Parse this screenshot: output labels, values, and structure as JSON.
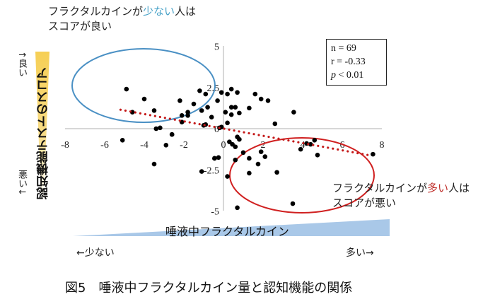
{
  "annotations": {
    "top_left": {
      "line1_pre": "フラクタルカインが",
      "line1_em": "少ない",
      "line1_post": "人は",
      "line2": "スコアが良い",
      "em_color": "#4aa3c8"
    },
    "bottom_right": {
      "line1_pre": "フラクタルカインが",
      "line1_em": "多い",
      "line1_post": "人は",
      "line2": "スコアが悪い",
      "em_color": "#c0302c"
    }
  },
  "stats": {
    "n": "n = 69",
    "r": "r = -0.33",
    "p_symbol": "p",
    "p_rest": " < 0.01"
  },
  "y_axis": {
    "title": "認知機能テストのスコア",
    "good": "↑良い",
    "bad": "悪い↓"
  },
  "x_axis": {
    "band_label": "唾液中フラクタルカイン",
    "low": "←少ない",
    "high": "多い→"
  },
  "caption": "図5　唾液中フラクタルカイン量と認知機能の関係",
  "colors": {
    "good_ellipse": "#4a90c4",
    "bad_ellipse": "#d02020",
    "trendline": "#c41818",
    "band": "#a9c8e8",
    "ybar": "#f7d36a"
  },
  "chart_data": {
    "type": "scatter",
    "title": "図5 唾液中フラクタルカイン量と認知機能の関係",
    "xlabel": "唾液中フラクタルカイン",
    "ylabel": "認知機能テストのスコア",
    "xlim": [
      -8,
      8
    ],
    "ylim": [
      -5,
      5
    ],
    "x_ticks": [
      -8,
      -6,
      -4,
      -2,
      0,
      2,
      4,
      6,
      8
    ],
    "y_ticks": [
      -5,
      -2.5,
      0,
      2.5,
      5
    ],
    "grid": false,
    "n": 69,
    "r": -0.33,
    "p": "< 0.01",
    "trendline": {
      "type": "linear",
      "x": [
        -5.2,
        7.3
      ],
      "y": [
        1.15,
        -1.6
      ]
    },
    "points": [
      [
        -4.9,
        2.4
      ],
      [
        -4.0,
        1.8
      ],
      [
        -4.6,
        1.0
      ],
      [
        -3.5,
        1.1
      ],
      [
        -2.2,
        1.7
      ],
      [
        -1.8,
        1.0
      ],
      [
        -1.5,
        1.5
      ],
      [
        -2.1,
        0.8
      ],
      [
        -1.8,
        0.8
      ],
      [
        -2.1,
        0.4
      ],
      [
        -1.2,
        2.3
      ],
      [
        -0.9,
        2.1
      ],
      [
        -0.8,
        1.3
      ],
      [
        -1.1,
        1.1
      ],
      [
        -3.4,
        0.0
      ],
      [
        -3.2,
        0.05
      ],
      [
        -2.6,
        -0.35
      ],
      [
        -5.1,
        -0.7
      ],
      [
        -2.9,
        -1.0
      ],
      [
        -1.0,
        0.2
      ],
      [
        -0.9,
        0.25
      ],
      [
        -0.1,
        0.1
      ],
      [
        -0.2,
        0.05
      ],
      [
        -0.3,
        1.7
      ],
      [
        -0.1,
        2.2
      ],
      [
        0.2,
        2.1
      ],
      [
        0.4,
        2.4
      ],
      [
        0.7,
        2.2
      ],
      [
        0.4,
        1.3
      ],
      [
        0.6,
        1.3
      ],
      [
        0.1,
        1.0
      ],
      [
        0.4,
        0.85
      ],
      [
        0.8,
        0.95
      ],
      [
        1.3,
        1.25
      ],
      [
        1.6,
        2.1
      ],
      [
        1.9,
        1.8
      ],
      [
        2.25,
        1.7
      ],
      [
        3.55,
        1.0
      ],
      [
        2.6,
        0.3
      ],
      [
        0.2,
        0.35
      ],
      [
        0.7,
        -0.5
      ],
      [
        0.8,
        -0.65
      ],
      [
        0.3,
        -0.8
      ],
      [
        0.45,
        -0.95
      ],
      [
        0.6,
        -1.1
      ],
      [
        1.0,
        -1.45
      ],
      [
        -0.45,
        -1.8
      ],
      [
        -0.25,
        -1.75
      ],
      [
        0.6,
        -1.9
      ],
      [
        1.3,
        -1.8
      ],
      [
        1.9,
        -1.4
      ],
      [
        2.1,
        -1.7
      ],
      [
        1.75,
        -2.15
      ],
      [
        1.3,
        -2.7
      ],
      [
        0.2,
        -2.9
      ],
      [
        2.7,
        -2.65
      ],
      [
        3.9,
        -1.25
      ],
      [
        4.2,
        -0.9
      ],
      [
        4.4,
        -0.95
      ],
      [
        4.6,
        -0.7
      ],
      [
        4.75,
        -1.6
      ],
      [
        3.5,
        -4.55
      ],
      [
        0.7,
        -4.8
      ],
      [
        7.55,
        -1.55
      ],
      [
        -2.6,
        -0.35
      ],
      [
        -3.5,
        -2.15
      ],
      [
        -1.1,
        -2.6
      ],
      [
        -0.45,
        -1.8
      ],
      [
        -0.6,
        0.7
      ]
    ],
    "annotations": [
      {
        "text": "フラクタルカインが少ない人はスコアが良い",
        "shape": "ellipse",
        "color": "#4a90c4",
        "center": [
          -4.0,
          2.6
        ]
      },
      {
        "text": "フラクタルカインが多い人はスコアが悪い",
        "shape": "ellipse",
        "color": "#d02020",
        "center": [
          3.9,
          -2.8
        ]
      }
    ]
  }
}
